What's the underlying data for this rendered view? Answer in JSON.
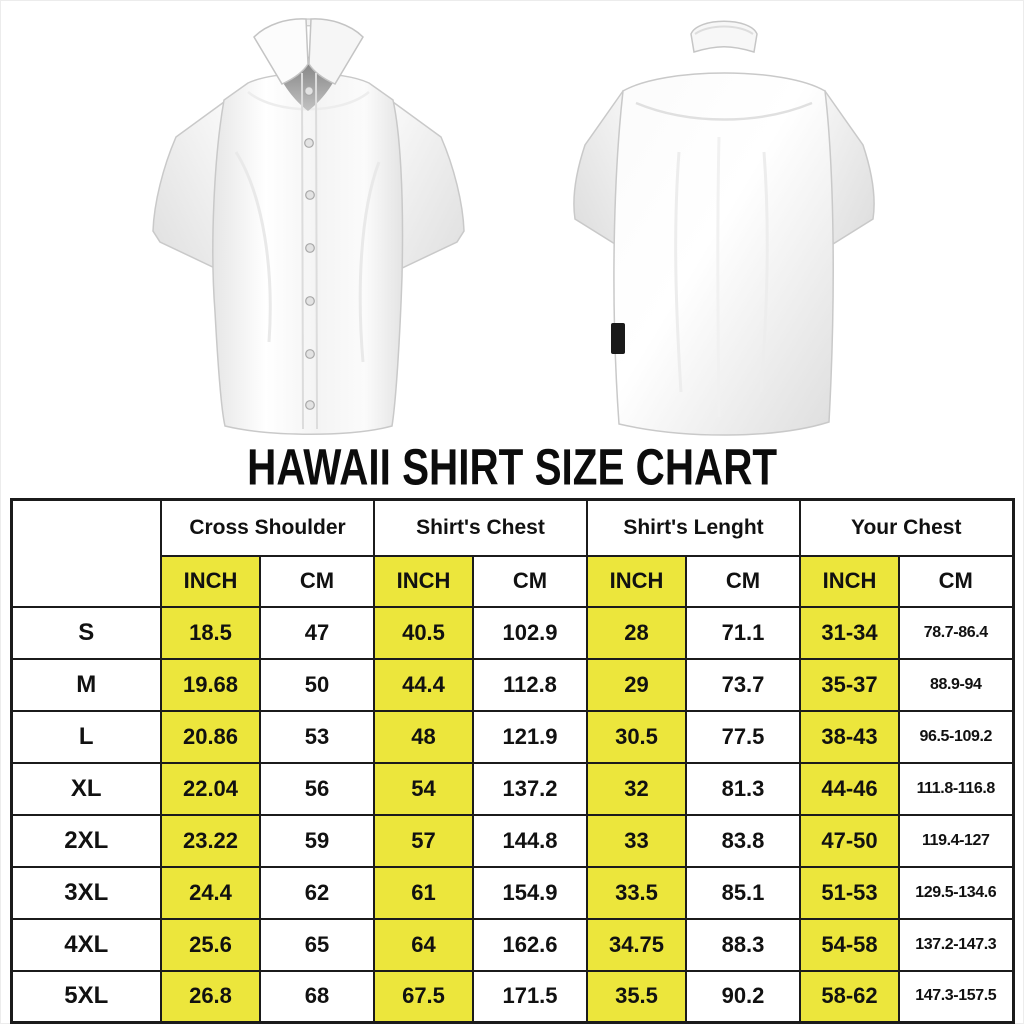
{
  "page": {
    "title": "HAWAII SHIRT SIZE CHART"
  },
  "colors": {
    "highlight_yellow": "#ece63c",
    "border_black": "#1b1b1b",
    "background": "#ffffff"
  },
  "images": {
    "front_shirt": "white-short-sleeve-shirt-front-view",
    "back_shirt": "white-short-sleeve-shirt-back-view"
  },
  "table": {
    "group_headers": [
      "Cross Shoulder",
      "Shirt's Chest",
      "Shirt's Lenght",
      "Your Chest"
    ],
    "units": [
      "INCH",
      "CM"
    ],
    "rows": [
      {
        "cells": [
          "S",
          "18.5",
          "47",
          "40.5",
          "102.9",
          "28",
          "71.1",
          "31-34",
          "78.7-86.4"
        ]
      },
      {
        "cells": [
          "M",
          "19.68",
          "50",
          "44.4",
          "112.8",
          "29",
          "73.7",
          "35-37",
          "88.9-94"
        ]
      },
      {
        "cells": [
          "L",
          "20.86",
          "53",
          "48",
          "121.9",
          "30.5",
          "77.5",
          "38-43",
          "96.5-109.2"
        ]
      },
      {
        "cells": [
          "XL",
          "22.04",
          "56",
          "54",
          "137.2",
          "32",
          "81.3",
          "44-46",
          "111.8-116.8"
        ]
      },
      {
        "cells": [
          "2XL",
          "23.22",
          "59",
          "57",
          "144.8",
          "33",
          "83.8",
          "47-50",
          "119.4-127"
        ]
      },
      {
        "cells": [
          "3XL",
          "24.4",
          "62",
          "61",
          "154.9",
          "33.5",
          "85.1",
          "51-53",
          "129.5-134.6"
        ]
      },
      {
        "cells": [
          "4XL",
          "25.6",
          "65",
          "64",
          "162.6",
          "34.75",
          "88.3",
          "54-58",
          "137.2-147.3"
        ]
      },
      {
        "cells": [
          "5XL",
          "26.8",
          "68",
          "67.5",
          "171.5",
          "35.5",
          "90.2",
          "58-62",
          "147.3-157.5"
        ]
      }
    ]
  },
  "chart_data": {
    "type": "table",
    "title": "HAWAII SHIRT SIZE CHART",
    "column_groups": [
      "Cross Shoulder",
      "Shirt's Chest",
      "Shirt's Lenght",
      "Your Chest"
    ],
    "units_per_group": [
      "INCH",
      "CM"
    ],
    "row_labels": [
      "S",
      "M",
      "L",
      "XL",
      "2XL",
      "3XL",
      "4XL",
      "5XL"
    ],
    "values": [
      [
        "18.5",
        "47",
        "40.5",
        "102.9",
        "28",
        "71.1",
        "31-34",
        "78.7-86.4"
      ],
      [
        "19.68",
        "50",
        "44.4",
        "112.8",
        "29",
        "73.7",
        "35-37",
        "88.9-94"
      ],
      [
        "20.86",
        "53",
        "48",
        "121.9",
        "30.5",
        "77.5",
        "38-43",
        "96.5-109.2"
      ],
      [
        "22.04",
        "56",
        "54",
        "137.2",
        "32",
        "81.3",
        "44-46",
        "111.8-116.8"
      ],
      [
        "23.22",
        "59",
        "57",
        "144.8",
        "33",
        "83.8",
        "47-50",
        "119.4-127"
      ],
      [
        "24.4",
        "62",
        "61",
        "154.9",
        "33.5",
        "85.1",
        "51-53",
        "129.5-134.6"
      ],
      [
        "25.6",
        "65",
        "64",
        "162.6",
        "34.75",
        "88.3",
        "54-58",
        "137.2-147.3"
      ],
      [
        "26.8",
        "68",
        "67.5",
        "171.5",
        "35.5",
        "90.2",
        "58-62",
        "147.3-157.5"
      ]
    ]
  }
}
